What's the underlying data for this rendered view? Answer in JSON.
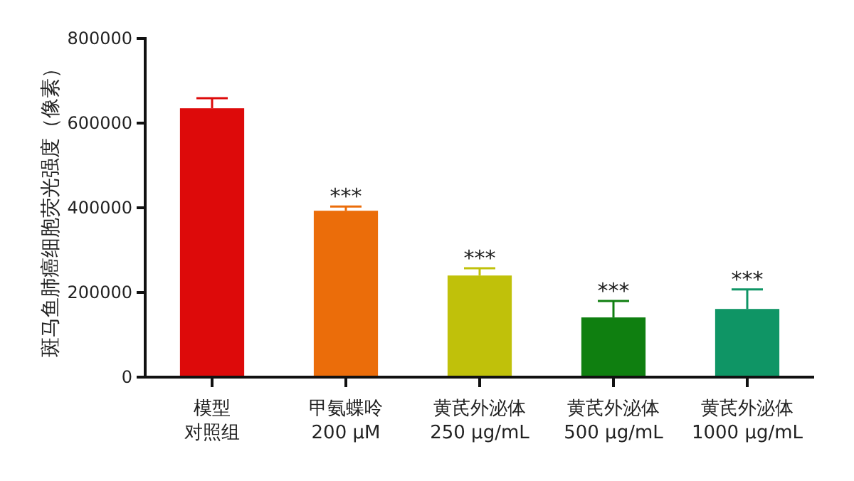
{
  "chart_data": {
    "type": "bar",
    "ylabel": "斑马鱼肺癌细胞荧光强度（像素）",
    "categories": [
      "模型对照组",
      "甲氨蝶呤 200 μM",
      "黄芪外泌体 250 μg/mL",
      "黄芪外泌体 500 μg/mL",
      "黄芪外泌体 1000 μg/mL"
    ],
    "values": [
      635000,
      393000,
      240000,
      141000,
      161000
    ],
    "colors": [
      "#dd0a0a",
      "#eb6d0a",
      "#c0c10a",
      "#0f7f10",
      "#0f9565"
    ],
    "errors": [
      [
        635000,
        659000
      ],
      [
        393000,
        403000
      ],
      [
        240000,
        257000
      ],
      [
        141000,
        180000
      ],
      [
        161000,
        207000
      ]
    ],
    "ylim": [
      0,
      800000
    ],
    "yticks": [
      0,
      200000,
      400000,
      600000,
      800000
    ],
    "grid": false,
    "annotations": [
      {
        "text": "***",
        "x": "甲氨蝶呤 200 μM",
        "y": 403000
      },
      {
        "text": "***",
        "x": "黄芪外泌体 250 μg/mL",
        "y": 257000
      },
      {
        "text": "***",
        "x": "黄芪外泌体 500 μg/mL",
        "y": 180000
      },
      {
        "text": "***",
        "x": "黄芪外泌体 1000 μg/mL",
        "y": 207000
      }
    ]
  }
}
